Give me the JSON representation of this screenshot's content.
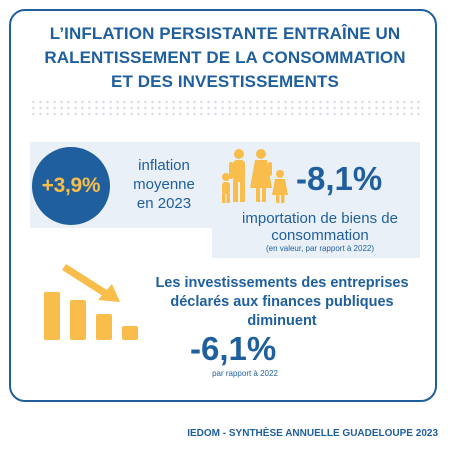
{
  "title": {
    "line1": "L’INFLATION PERSISTANTE ENTRAÎNE UN",
    "line2": "RALENTISSEMENT DE LA CONSOMMATION",
    "line3": "ET DES INVESTISSEMENTS"
  },
  "inflation": {
    "value": "+3,9%",
    "label_line1": "inflation",
    "label_line2": "moyenne",
    "label_line3": "en 2023"
  },
  "imports": {
    "value": "-8,1%",
    "label_line1": "importation de biens de",
    "label_line2": "consommation",
    "note": "(en valeur, par rapport à 2022)"
  },
  "investments": {
    "title_line1": "Les investissements des entreprises",
    "title_line2": "déclarés aux finances publiques",
    "title_line3": "diminuent",
    "value": "-6,1%",
    "note": "par rapport à 2022"
  },
  "footer": "IEDOM - SYNTHÈSE ANNUELLE GUADELOUPE 2023",
  "colors": {
    "primary_blue": "#1f5f9e",
    "accent_orange": "#f8bd4a",
    "panel_bg": "#e9f0f8"
  },
  "icons": [
    "family-icon",
    "declining-bars-icon",
    "down-arrow-icon"
  ]
}
